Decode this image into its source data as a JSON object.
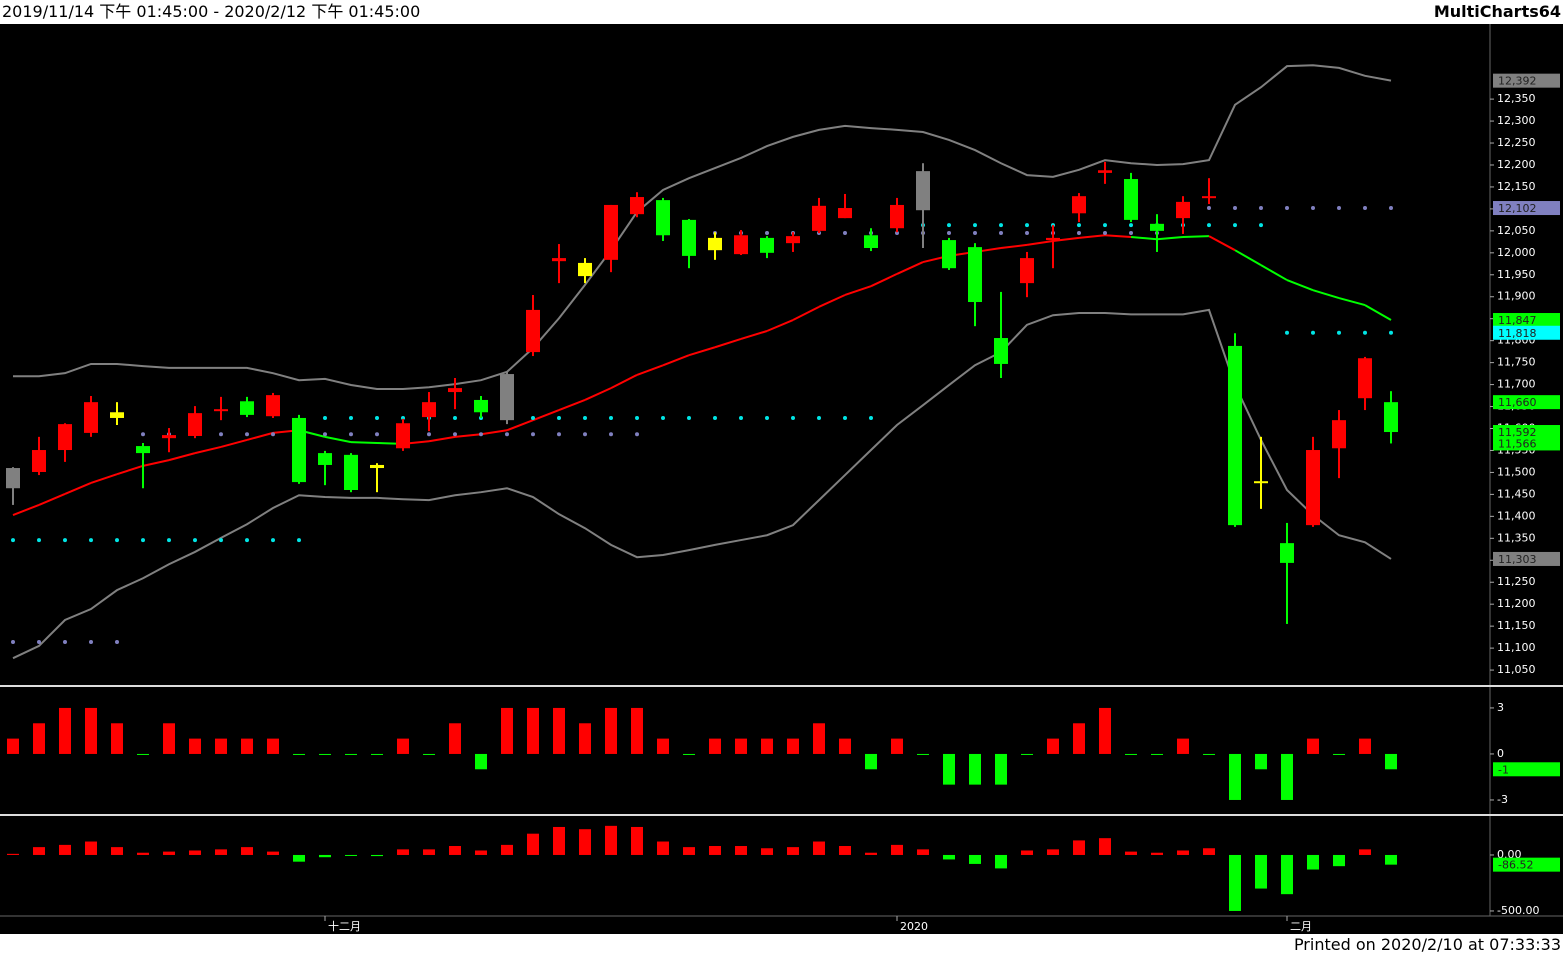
{
  "header": {
    "title": "2019/11/14 下午 01:45:00 - 2020/2/12 下午 01:45:00",
    "brand": "MultiCharts64"
  },
  "footer": {
    "text": "Printed on 2020/2/10 at 07:33:33"
  },
  "chart_data": [
    {
      "type": "candlestick",
      "categories": [
        null,
        null,
        null,
        null,
        null,
        null,
        null,
        null,
        null,
        null,
        null,
        null,
        "十二月",
        null,
        null,
        null,
        null,
        null,
        null,
        null,
        null,
        null,
        null,
        null,
        null,
        null,
        null,
        null,
        null,
        null,
        null,
        null,
        null,
        null,
        "2020",
        null,
        null,
        null,
        null,
        null,
        null,
        null,
        null,
        null,
        null,
        null,
        null,
        null,
        null,
        "二月",
        null,
        null,
        null,
        null
      ],
      "open": [
        11510,
        11501,
        11551,
        11590,
        11624,
        11560,
        11578,
        11583,
        11640,
        11662,
        11628,
        11624,
        11544,
        11540,
        11517,
        11555,
        11626,
        11683,
        11665,
        11724,
        11774,
        11981,
        11947,
        11984,
        12088,
        12120,
        12075,
        12034,
        11997,
        12034,
        12022,
        12050,
        12079,
        12040,
        12056,
        12186,
        12029,
        12013,
        11806,
        11931,
        12029,
        12090,
        12182,
        12168,
        12066,
        12079,
        12125,
        11788,
        11480,
        11339,
        11380,
        11555,
        11669,
        11660
      ],
      "high": [
        11512,
        11581,
        11612,
        11674,
        11660,
        11567,
        11601,
        11651,
        11672,
        11672,
        11681,
        11631,
        11549,
        11544,
        11521,
        11622,
        11683,
        11715,
        11674,
        11729,
        11904,
        12020,
        11988,
        12109,
        12138,
        12125,
        12077,
        12047,
        12052,
        12038,
        12047,
        12125,
        12134,
        12056,
        12125,
        12204,
        12034,
        12022,
        11911,
        12002,
        12063,
        12136,
        12207,
        12182,
        12088,
        12129,
        12170,
        11817,
        11581,
        11385,
        11581,
        11642,
        11763,
        11685
      ],
      "low": [
        11426,
        11494,
        11524,
        11581,
        11608,
        11464,
        11546,
        11578,
        11619,
        11626,
        11624,
        11474,
        11471,
        11455,
        11455,
        11549,
        11594,
        11644,
        11624,
        11610,
        11765,
        11931,
        11931,
        11956,
        12081,
        12027,
        11965,
        11984,
        11995,
        11988,
        12002,
        12045,
        12079,
        12004,
        12047,
        12011,
        11961,
        11833,
        11715,
        11899,
        11965,
        12070,
        12157,
        12070,
        12002,
        12043,
        12111,
        11376,
        11417,
        11155,
        11376,
        11487,
        11642,
        11566
      ],
      "close": [
        11464,
        11551,
        11610,
        11660,
        11637,
        11544,
        11585,
        11635,
        11644,
        11631,
        11676,
        11478,
        11517,
        11460,
        11510,
        11612,
        11660,
        11692,
        11637,
        11619,
        11870,
        11988,
        11977,
        12109,
        12127,
        12040,
        11993,
        12006,
        12040,
        12000,
        12038,
        12107,
        12102,
        12011,
        12109,
        12097,
        11965,
        11888,
        11747,
        11988,
        12034,
        12129,
        12188,
        12075,
        12050,
        12116,
        12129,
        11380,
        11476,
        11294,
        11551,
        11619,
        11760,
        11592
      ],
      "colors": [
        "#808080",
        "#ff0000",
        "#ff0000",
        "#ff0000",
        "#ffff00",
        "#00ff00",
        "#ff0000",
        "#ff0000",
        "#ff0000",
        "#00ff00",
        "#ff0000",
        "#00ff00",
        "#00ff00",
        "#00ff00",
        "#ffff00",
        "#ff0000",
        "#ff0000",
        "#ff0000",
        "#00ff00",
        "#808080",
        "#ff0000",
        "#ff0000",
        "#ffff00",
        "#ff0000",
        "#ff0000",
        "#00ff00",
        "#00ff00",
        "#ffff00",
        "#ff0000",
        "#00ff00",
        "#ff0000",
        "#ff0000",
        "#ff0000",
        "#00ff00",
        "#ff0000",
        "#808080",
        "#00ff00",
        "#00ff00",
        "#00ff00",
        "#ff0000",
        "#ff0000",
        "#ff0000",
        "#ff0000",
        "#00ff00",
        "#00ff00",
        "#ff0000",
        "#ff0000",
        "#00ff00",
        "#ffff00",
        "#00ff00",
        "#ff0000",
        "#ff0000",
        "#ff0000",
        "#00ff00"
      ],
      "overlays": [
        {
          "style": "line",
          "color": "#808080",
          "values": [
            11719,
            11719,
            11726,
            11747,
            11747,
            11742,
            11738,
            11738,
            11738,
            11738,
            11726,
            11710,
            11713,
            11699,
            11690,
            11690,
            11694,
            11701,
            11710,
            11729,
            11783,
            11851,
            11927,
            12006,
            12093,
            12143,
            12170,
            12193,
            12216,
            12243,
            12264,
            12280,
            12289,
            12284,
            12280,
            12275,
            12257,
            12234,
            12204,
            12177,
            12173,
            12189,
            12211,
            12204,
            12200,
            12202,
            12211,
            12337,
            12377,
            12425,
            12427,
            12421,
            12403,
            12392
          ]
        },
        {
          "style": "line",
          "color": "#808080",
          "values": [
            11077,
            11105,
            11164,
            11189,
            11232,
            11259,
            11291,
            11319,
            11351,
            11382,
            11419,
            11448,
            11444,
            11442,
            11442,
            11439,
            11437,
            11448,
            11455,
            11464,
            11444,
            11405,
            11373,
            11335,
            11307,
            11312,
            11323,
            11335,
            11346,
            11357,
            11380,
            11437,
            11494,
            11551,
            11608,
            11653,
            11699,
            11744,
            11774,
            11836,
            11858,
            11863,
            11863,
            11860,
            11860,
            11860,
            11870,
            11699,
            11574,
            11460,
            11403,
            11357,
            11341,
            11303
          ]
        },
        {
          "style": "line",
          "color": "#ff0000",
          "colors": [
            "#ff0000",
            "#ff0000",
            "#ff0000",
            "#ff0000",
            "#ff0000",
            "#ff0000",
            "#ff0000",
            "#ff0000",
            "#ff0000",
            "#ff0000",
            "#ff0000",
            "#ff0000",
            "#00ff00",
            "#00ff00",
            "#00ff00",
            "#00ff00",
            "#ff0000",
            "#ff0000",
            "#ff0000",
            "#ff0000",
            "#ff0000",
            "#ff0000",
            "#ff0000",
            "#ff0000",
            "#ff0000",
            "#ff0000",
            "#ff0000",
            "#ff0000",
            "#ff0000",
            "#ff0000",
            "#ff0000",
            "#ff0000",
            "#ff0000",
            "#ff0000",
            "#ff0000",
            "#ff0000",
            "#ff0000",
            "#ff0000",
            "#ff0000",
            "#ff0000",
            "#ff0000",
            "#ff0000",
            "#ff0000",
            "#ff0000",
            "#00ff00",
            "#00ff00",
            "#00ff00",
            "#ff0000",
            "#00ff00",
            "#00ff00",
            "#00ff00",
            "#00ff00",
            "#00ff00",
            "#00ff00"
          ],
          "values": [
            11403,
            11426,
            11451,
            11476,
            11496,
            11515,
            11528,
            11544,
            11558,
            11574,
            11590,
            11596,
            11581,
            11569,
            11567,
            11565,
            11571,
            11581,
            11587,
            11596,
            11619,
            11642,
            11665,
            11692,
            11722,
            11744,
            11767,
            11785,
            11804,
            11822,
            11847,
            11877,
            11904,
            11924,
            11952,
            11979,
            11993,
            12002,
            12011,
            12018,
            12027,
            12034,
            12040,
            12036,
            12031,
            12036,
            12038,
            12006,
            11972,
            11938,
            11915,
            11897,
            11881,
            11847
          ]
        },
        {
          "style": "dots",
          "color": "#00e5e5",
          "values": [
            11346,
            11346,
            11346,
            11346,
            11346,
            11346,
            11346,
            11346,
            11346,
            11346,
            11346,
            11346,
            11624,
            11624,
            11624,
            11624,
            11624,
            11624,
            11624,
            11624,
            11624,
            11624,
            11624,
            11624,
            11624,
            11624,
            11624,
            11624,
            11624,
            11624,
            11624,
            11624,
            11624,
            11624,
            null,
            12063,
            12063,
            12063,
            12063,
            12063,
            12063,
            12063,
            12063,
            12063,
            12063,
            12063,
            12063,
            12063,
            12063,
            11818,
            11818,
            11818,
            11818,
            11818
          ]
        },
        {
          "style": "dots",
          "color": "#8080c0",
          "values": [
            11114,
            11114,
            11114,
            11114,
            11114,
            11587,
            11587,
            11587,
            11587,
            11587,
            11587,
            11587,
            11587,
            11587,
            11587,
            11587,
            11587,
            11587,
            11587,
            11587,
            11587,
            11587,
            11587,
            11587,
            11587,
            null,
            12045,
            12045,
            12045,
            12045,
            12045,
            12045,
            12045,
            12045,
            12045,
            12045,
            12045,
            12045,
            12045,
            12045,
            12045,
            12045,
            12045,
            12045,
            12045,
            12102,
            12102,
            12102,
            12102,
            12102,
            12102,
            12102,
            12102,
            12102
          ]
        }
      ],
      "ylim": [
        11016,
        12521
      ],
      "yticks": [
        {
          "value": 11050,
          "label": "11,050"
        },
        {
          "value": 11100,
          "label": "11,100"
        },
        {
          "value": 11150,
          "label": "11,150"
        },
        {
          "value": 11200,
          "label": "11,200"
        },
        {
          "value": 11250,
          "label": "11,250"
        },
        {
          "value": 11300,
          "label": "11,300"
        },
        {
          "value": 11350,
          "label": "11,350"
        },
        {
          "value": 11400,
          "label": "11,400"
        },
        {
          "value": 11450,
          "label": "11,450"
        },
        {
          "value": 11500,
          "label": "11,500"
        },
        {
          "value": 11550,
          "label": "11,550"
        },
        {
          "value": 11600,
          "label": "11,600"
        },
        {
          "value": 11650,
          "label": "11,650"
        },
        {
          "value": 11700,
          "label": "11,700"
        },
        {
          "value": 11750,
          "label": "11,750"
        },
        {
          "value": 11800,
          "label": "11,800"
        },
        {
          "value": 11850,
          "label": "11,850"
        },
        {
          "value": 11900,
          "label": "11,900"
        },
        {
          "value": 11950,
          "label": "11,950"
        },
        {
          "value": 12000,
          "label": "12,000"
        },
        {
          "value": 12050,
          "label": "12,050"
        },
        {
          "value": 12100,
          "label": "12,100"
        },
        {
          "value": 12150,
          "label": "12,150"
        },
        {
          "value": 12200,
          "label": "12,200"
        },
        {
          "value": 12250,
          "label": "12,250"
        },
        {
          "value": 12300,
          "label": "12,300"
        },
        {
          "value": 12350,
          "label": "12,350"
        }
      ],
      "price_markers": [
        {
          "value": 12392,
          "label": "12,392",
          "color": "#808080"
        },
        {
          "value": 12102,
          "label": "12,102",
          "color": "#8080c0"
        },
        {
          "value": 11847,
          "label": "11,847",
          "color": "#00ff00"
        },
        {
          "value": 11818,
          "label": "11,818",
          "color": "#00ffff"
        },
        {
          "value": 11660,
          "label": "11,660",
          "color": "#00ff00"
        },
        {
          "value": 11592,
          "label": "11,592",
          "color": "#00ff00"
        },
        {
          "value": 11566,
          "label": "11,566",
          "color": "#00ff00"
        },
        {
          "value": 11303,
          "label": "11,303",
          "color": "#808080"
        }
      ]
    },
    {
      "type": "bar",
      "up_color": "#ff0000",
      "down_color": "#00ff00",
      "values": [
        1,
        2,
        3,
        3,
        2,
        0,
        2,
        1,
        1,
        1,
        1,
        0,
        0,
        0,
        0,
        1,
        0,
        2,
        -1,
        3,
        3,
        3,
        2,
        3,
        3,
        1,
        0,
        1,
        1,
        1,
        1,
        2,
        1,
        -1,
        1,
        0,
        -2,
        -2,
        -2,
        0,
        1,
        2,
        3,
        0,
        0,
        1,
        0,
        -3,
        -1,
        -3,
        1,
        0,
        1,
        -1
      ],
      "ylim": [
        -3.85,
        4.3
      ],
      "yticks": [
        3,
        0,
        -3
      ],
      "price_markers": [
        {
          "value": -1,
          "label": "-1",
          "color": "#00ff00"
        }
      ]
    },
    {
      "type": "bar",
      "up_color": "#ff0000",
      "down_color": "#00ff00",
      "values": [
        10,
        70,
        90,
        120,
        70,
        20,
        30,
        40,
        50,
        70,
        30,
        -60,
        -20,
        0,
        -10,
        50,
        50,
        80,
        40,
        90,
        190,
        250,
        230,
        260,
        250,
        120,
        70,
        80,
        80,
        60,
        70,
        120,
        80,
        20,
        90,
        50,
        -40,
        -80,
        -120,
        40,
        50,
        130,
        150,
        30,
        20,
        40,
        60,
        -500,
        -300,
        -350,
        -130,
        -100,
        50,
        -86.52
      ],
      "ylim": [
        -545,
        339
      ],
      "yticks": [
        {
          "value": 0,
          "label": "0.00"
        },
        {
          "value": -500,
          "label": "-500.00"
        }
      ],
      "price_markers": [
        {
          "value": -86.52,
          "label": "-86.52",
          "color": "#00ff00"
        }
      ]
    }
  ]
}
